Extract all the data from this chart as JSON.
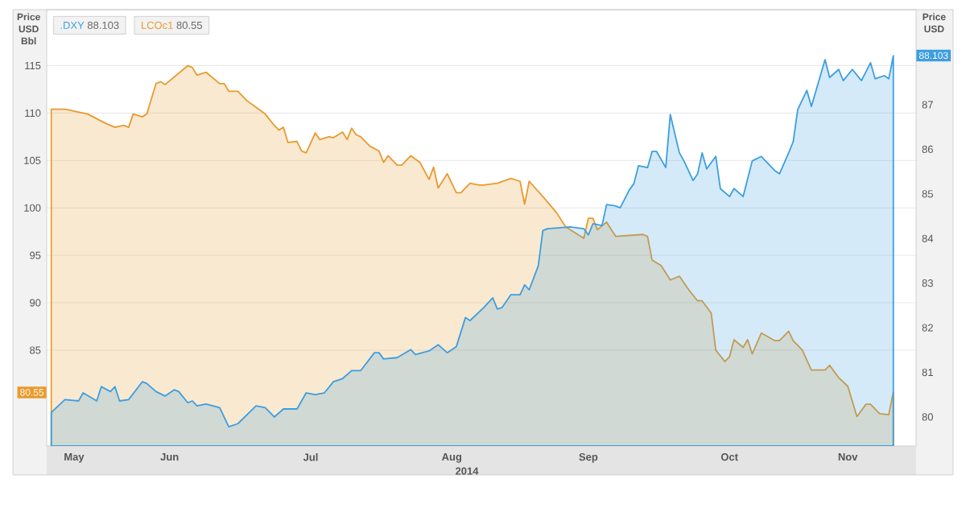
{
  "chart_data": {
    "type": "area",
    "ylabel": "Price USD Bbl",
    "y2label": "Price USD",
    "xlabel": "2014",
    "xlim": [
      "2014-05-19",
      "2014-11-26"
    ],
    "xticks": [
      {
        "value": "2014-05-25",
        "label": "May"
      },
      {
        "value": "2014-06-15",
        "label": "Jun"
      },
      {
        "value": "2014-07-16",
        "label": "Jul"
      },
      {
        "value": "2014-08-16",
        "label": "Aug"
      },
      {
        "value": "2014-09-15",
        "label": "Sep"
      },
      {
        "value": "2014-10-16",
        "label": "Oct"
      },
      {
        "value": "2014-11-11",
        "label": "Nov"
      }
    ],
    "ylim": [
      74.9,
      120.9
    ],
    "yticks": [
      {
        "value": 80.55,
        "label": "80.55"
      },
      85,
      90,
      95,
      100,
      105,
      110,
      115
    ],
    "y2lim": [
      79.35,
      89.13
    ],
    "y2ticks": [
      80,
      81,
      82,
      83,
      84,
      85,
      86,
      87,
      {
        "value": 88.103,
        "label": "88.103"
      }
    ],
    "annotations": [
      "88.103",
      "80.55"
    ],
    "grid": "y",
    "legend": "top left",
    "series": [
      {
        "name": ".DXY",
        "color": "#3d9ee0",
        "axis": "y2",
        "x": [
          "2014-05-20",
          "2014-05-23",
          "2014-05-26",
          "2014-05-27",
          "2014-05-30",
          "2014-05-31",
          "2014-06-02",
          "2014-06-03",
          "2014-06-04",
          "2014-06-06",
          "2014-06-09",
          "2014-06-10",
          "2014-06-12",
          "2014-06-14",
          "2014-06-16",
          "2014-06-17",
          "2014-06-19",
          "2014-06-20",
          "2014-06-21",
          "2014-06-23",
          "2014-06-26",
          "2014-06-28",
          "2014-06-30",
          "2014-07-04",
          "2014-07-06",
          "2014-07-08",
          "2014-07-10",
          "2014-07-13",
          "2014-07-15",
          "2014-07-17",
          "2014-07-19",
          "2014-07-21",
          "2014-07-23",
          "2014-07-25",
          "2014-07-27",
          "2014-07-30",
          "2014-07-31",
          "2014-08-01",
          "2014-08-04",
          "2014-08-07",
          "2014-08-08",
          "2014-08-11",
          "2014-08-13",
          "2014-08-15",
          "2014-08-17",
          "2014-08-19",
          "2014-08-20",
          "2014-08-23",
          "2014-08-25",
          "2014-08-26",
          "2014-08-27",
          "2014-08-29",
          "2014-08-31",
          "2014-09-01",
          "2014-09-02",
          "2014-09-04",
          "2014-09-05",
          "2014-09-06",
          "2014-09-11",
          "2014-09-14",
          "2014-09-15",
          "2014-09-16",
          "2014-09-18",
          "2014-09-19",
          "2014-09-21",
          "2014-09-22",
          "2014-09-24",
          "2014-09-25",
          "2014-09-26",
          "2014-09-28",
          "2014-09-29",
          "2014-09-30",
          "2014-10-02",
          "2014-10-03",
          "2014-10-05",
          "2014-10-06",
          "2014-10-08",
          "2014-10-09",
          "2014-10-10",
          "2014-10-11",
          "2014-10-13",
          "2014-10-14",
          "2014-10-16",
          "2014-10-17",
          "2014-10-19",
          "2014-10-21",
          "2014-10-23",
          "2014-10-26",
          "2014-10-27",
          "2014-10-29",
          "2014-10-30",
          "2014-10-31",
          "2014-11-02",
          "2014-11-03",
          "2014-11-06",
          "2014-11-07",
          "2014-11-09",
          "2014-11-10",
          "2014-11-12",
          "2014-11-14",
          "2014-11-16",
          "2014-11-17",
          "2014-11-19",
          "2014-11-20",
          "2014-11-21"
        ],
        "values": [
          80.1,
          80.39,
          80.36,
          80.54,
          80.36,
          80.68,
          80.57,
          80.68,
          80.36,
          80.39,
          80.79,
          80.75,
          80.57,
          80.47,
          80.61,
          80.57,
          80.32,
          80.36,
          80.25,
          80.29,
          80.21,
          79.78,
          79.85,
          80.25,
          80.21,
          80.0,
          80.18,
          80.18,
          80.54,
          80.5,
          80.54,
          80.79,
          80.86,
          81.04,
          81.04,
          81.44,
          81.44,
          81.3,
          81.33,
          81.51,
          81.4,
          81.48,
          81.62,
          81.44,
          81.58,
          82.23,
          82.16,
          82.45,
          82.67,
          82.42,
          82.45,
          82.74,
          82.74,
          82.96,
          82.85,
          83.39,
          84.18,
          84.22,
          84.26,
          84.22,
          84.08,
          84.33,
          84.29,
          84.76,
          84.73,
          84.69,
          85.09,
          85.23,
          85.63,
          85.59,
          85.95,
          85.95,
          85.59,
          86.78,
          85.92,
          85.74,
          85.3,
          85.45,
          85.92,
          85.56,
          85.84,
          85.12,
          84.94,
          85.12,
          84.94,
          85.74,
          85.84,
          85.52,
          85.45,
          85.92,
          86.17,
          86.89,
          87.32,
          86.96,
          88.01,
          87.61,
          87.79,
          87.54,
          87.79,
          87.54,
          87.94,
          87.58,
          87.65,
          87.58,
          88.1
        ]
      },
      {
        "name": "LCOc1",
        "color": "#e99a2c",
        "axis": "y",
        "x": [
          "2014-05-20",
          "2014-05-23",
          "2014-05-28",
          "2014-06-01",
          "2014-06-03",
          "2014-06-05",
          "2014-06-06",
          "2014-06-07",
          "2014-06-09",
          "2014-06-10",
          "2014-06-12",
          "2014-06-13",
          "2014-06-14",
          "2014-06-19",
          "2014-06-20",
          "2014-06-21",
          "2014-06-23",
          "2014-06-26",
          "2014-06-27",
          "2014-06-28",
          "2014-06-30",
          "2014-07-02",
          "2014-07-04",
          "2014-07-06",
          "2014-07-08",
          "2014-07-09",
          "2014-07-10",
          "2014-07-11",
          "2014-07-13",
          "2014-07-14",
          "2014-07-15",
          "2014-07-17",
          "2014-07-18",
          "2014-07-20",
          "2014-07-21",
          "2014-07-23",
          "2014-07-24",
          "2014-07-25",
          "2014-07-26",
          "2014-07-27",
          "2014-07-29",
          "2014-07-31",
          "2014-08-01",
          "2014-08-02",
          "2014-08-04",
          "2014-08-05",
          "2014-08-07",
          "2014-08-09",
          "2014-08-11",
          "2014-08-12",
          "2014-08-13",
          "2014-08-15",
          "2014-08-17",
          "2014-08-18",
          "2014-08-20",
          "2014-08-22",
          "2014-08-23",
          "2014-08-26",
          "2014-08-29",
          "2014-08-31",
          "2014-09-01",
          "2014-09-02",
          "2014-09-05",
          "2014-09-08",
          "2014-09-10",
          "2014-09-14",
          "2014-09-15",
          "2014-09-16",
          "2014-09-17",
          "2014-09-19",
          "2014-09-21",
          "2014-09-27",
          "2014-09-28",
          "2014-09-29",
          "2014-10-01",
          "2014-10-03",
          "2014-10-05",
          "2014-10-07",
          "2014-10-09",
          "2014-10-10",
          "2014-10-12",
          "2014-10-13",
          "2014-10-15",
          "2014-10-16",
          "2014-10-17",
          "2014-10-19",
          "2014-10-20",
          "2014-10-21",
          "2014-10-23",
          "2014-10-26",
          "2014-10-27",
          "2014-10-29",
          "2014-10-30",
          "2014-11-01",
          "2014-11-03",
          "2014-11-06",
          "2014-11-07",
          "2014-11-09",
          "2014-11-11",
          "2014-11-13",
          "2014-11-15",
          "2014-11-16",
          "2014-11-18",
          "2014-11-20",
          "2014-11-21"
        ],
        "values": [
          110.4,
          110.4,
          109.9,
          108.9,
          108.5,
          108.7,
          108.5,
          109.9,
          109.6,
          109.9,
          113.1,
          113.3,
          113.0,
          115.0,
          114.8,
          114.0,
          114.3,
          113.1,
          113.1,
          112.3,
          112.3,
          111.3,
          110.6,
          109.9,
          108.7,
          108.2,
          108.5,
          106.9,
          107.0,
          106.0,
          105.8,
          107.9,
          107.2,
          107.5,
          107.4,
          108.0,
          107.2,
          108.4,
          107.7,
          107.5,
          106.5,
          106.0,
          104.8,
          105.5,
          104.5,
          104.5,
          105.5,
          104.8,
          103.0,
          104.3,
          102.1,
          103.6,
          101.6,
          101.6,
          102.6,
          102.4,
          102.4,
          102.6,
          103.1,
          102.8,
          100.4,
          102.8,
          101.2,
          99.5,
          98.0,
          96.8,
          98.9,
          98.9,
          97.7,
          98.5,
          97.0,
          97.2,
          97.0,
          94.5,
          93.9,
          92.4,
          92.8,
          91.4,
          90.2,
          90.2,
          88.9,
          85.0,
          83.8,
          84.3,
          86.1,
          85.3,
          86.1,
          84.6,
          86.8,
          86.0,
          86.0,
          87.0,
          86.0,
          85.0,
          82.9,
          82.9,
          83.4,
          82.1,
          81.2,
          78.0,
          79.3,
          79.3,
          78.3,
          78.2,
          80.6
        ]
      }
    ]
  }
}
